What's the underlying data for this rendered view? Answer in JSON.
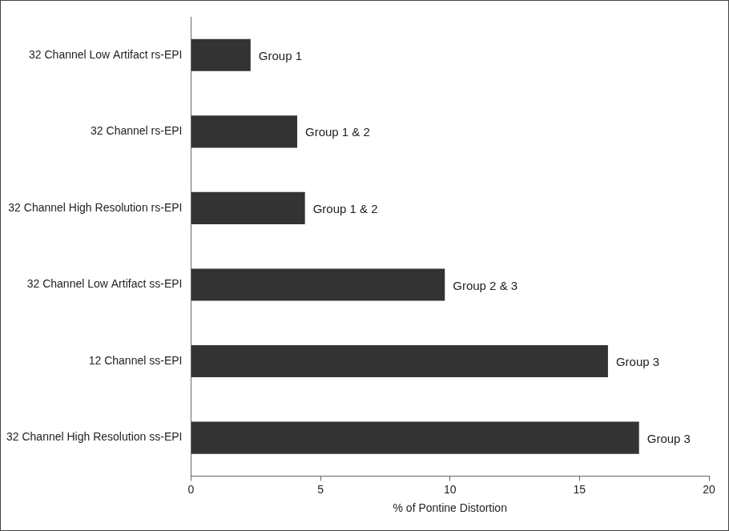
{
  "chart_data": {
    "type": "bar",
    "orientation": "horizontal",
    "categories": [
      "32 Channel Low Artifact rs-EPI",
      "32 Channel rs-EPI",
      "32 Channel High Resolution rs-EPI",
      "32 Channel Low Artifact ss-EPI",
      "12 Channel ss-EPI",
      "32 Channel High Resolution ss-EPI"
    ],
    "values": [
      2.3,
      4.1,
      4.4,
      9.8,
      16.1,
      17.3
    ],
    "annotations": [
      "Group 1",
      "Group 1 & 2",
      "Group 1 & 2",
      "Group 2 & 3",
      "Group 3",
      "Group 3"
    ],
    "color": "#333333",
    "x_label": "% of Pontine Distortion",
    "xlim": [
      0,
      20
    ],
    "xticks": [
      0,
      5,
      10,
      15,
      20
    ],
    "grid": false
  }
}
